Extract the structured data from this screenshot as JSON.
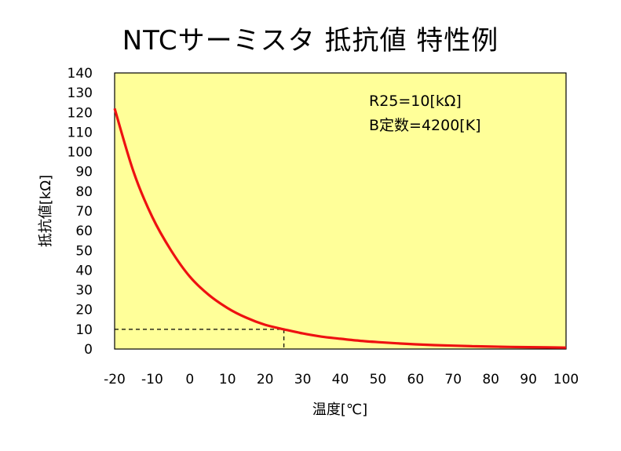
{
  "title": "NTCサーミスタ 抵抗値 特性例",
  "chart_data": {
    "type": "line",
    "title": "NTCサーミスタ 抵抗値 特性例",
    "xlabel": "温度[℃]",
    "ylabel": "抵抗値[kΩ]",
    "xlim": [
      -20,
      100
    ],
    "ylim": [
      0,
      140
    ],
    "x_ticks": [
      "-20",
      "-10",
      "0",
      "10",
      "20",
      "30",
      "40",
      "50",
      "60",
      "70",
      "80",
      "90",
      "100"
    ],
    "y_ticks": [
      "140",
      "130",
      "120",
      "110",
      "100",
      "90",
      "80",
      "70",
      "60",
      "50",
      "40",
      "30",
      "20",
      "10",
      "0"
    ],
    "grid": false,
    "background_color": "#ffff99",
    "series": [
      {
        "color": "#ee1111",
        "x": [
          -20,
          -15,
          -10,
          -5,
          0,
          5,
          10,
          15,
          20,
          25,
          30,
          35,
          40,
          45,
          50,
          55,
          60,
          65,
          70,
          75,
          80,
          85,
          90,
          95,
          100
        ],
        "y": [
          122,
          90,
          67,
          50,
          36.7,
          27.5,
          20.8,
          15.9,
          12.3,
          10,
          7.9,
          6.3,
          5.2,
          4.2,
          3.5,
          2.9,
          2.4,
          2.0,
          1.7,
          1.45,
          1.25,
          1.08,
          0.94,
          0.82,
          0.71
        ]
      }
    ],
    "reference_point": {
      "x": 25,
      "y": 10,
      "style": "dashed"
    },
    "annotations": [
      "R25=10[kΩ]",
      "B定数=4200[K]"
    ]
  }
}
